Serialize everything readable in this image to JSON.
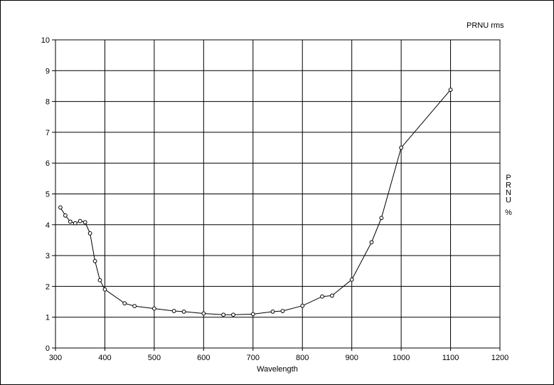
{
  "chart_data": {
    "type": "line",
    "title": "PRNU rms",
    "xlabel": "Wavelength",
    "ylabel": "PRNU",
    "yunit": "%",
    "xlim": [
      300,
      1200
    ],
    "ylim": [
      0,
      10
    ],
    "xticks": [
      300,
      400,
      500,
      600,
      700,
      800,
      900,
      1000,
      1100,
      1200
    ],
    "yticks": [
      0,
      1,
      2,
      3,
      4,
      5,
      6,
      7,
      8,
      9,
      10
    ],
    "grid": true,
    "line_color": "#000000",
    "marker": "circle",
    "series": [
      {
        "x": [
          310,
          320,
          330,
          340,
          350,
          360,
          370,
          380,
          390,
          400,
          440,
          460,
          500,
          540,
          560,
          600,
          640,
          660,
          700,
          740,
          760,
          800,
          840,
          860,
          900,
          940,
          960,
          1000,
          1100
        ],
        "y": [
          4.56,
          4.3,
          4.1,
          4.05,
          4.12,
          4.08,
          3.72,
          2.82,
          2.2,
          1.9,
          1.45,
          1.36,
          1.28,
          1.2,
          1.18,
          1.12,
          1.08,
          1.08,
          1.1,
          1.18,
          1.2,
          1.37,
          1.67,
          1.7,
          2.22,
          3.43,
          4.22,
          6.5,
          8.38
        ]
      }
    ]
  }
}
